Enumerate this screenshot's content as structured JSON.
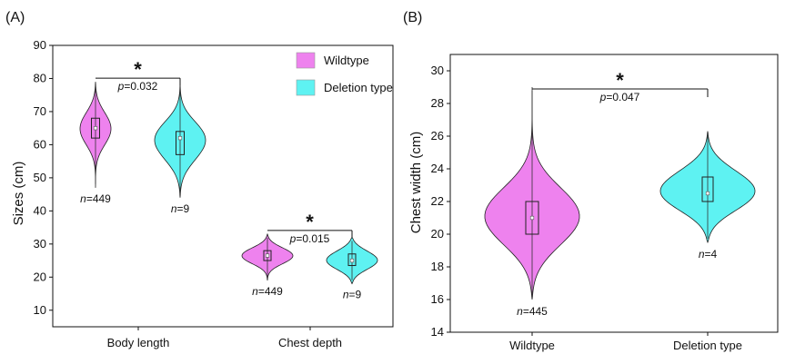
{
  "chart_data": [
    {
      "type": "violin",
      "panel_label": "(A)",
      "ylabel": "Sizes (cm)",
      "xlabel": "",
      "ylim": [
        5,
        90
      ],
      "yticks": [
        10,
        20,
        30,
        40,
        50,
        60,
        70,
        80,
        90
      ],
      "categories": [
        "Body length",
        "Chest depth"
      ],
      "legend": {
        "position": "top-right",
        "entries": [
          "Wildtype",
          "Deletion type"
        ]
      },
      "series": [
        {
          "name": "Wildtype",
          "color": "#ee82ee",
          "groups": [
            {
              "category": "Body length",
              "min": 47,
              "q1": 62,
              "median": 65,
              "mean": 65,
              "q3": 68,
              "max": 79,
              "n_label": "n=449"
            },
            {
              "category": "Chest depth",
              "min": 19,
              "q1": 25,
              "median": 26.5,
              "mean": 26.5,
              "q3": 28,
              "max": 33,
              "n_label": "n=449"
            }
          ]
        },
        {
          "name": "Deletion type",
          "color": "#5ef2f2",
          "groups": [
            {
              "category": "Body length",
              "min": 44,
              "q1": 57,
              "median": 62,
              "mean": 62,
              "q3": 64,
              "max": 79,
              "n_label": "n=9"
            },
            {
              "category": "Chest depth",
              "min": 18,
              "q1": 23.5,
              "median": 25,
              "mean": 25,
              "q3": 27,
              "max": 32,
              "n_label": "n=9"
            }
          ]
        }
      ],
      "annotations": [
        {
          "between": "Body length",
          "star": "*",
          "p_prefix": "p",
          "p_value": "=0.032"
        },
        {
          "between": "Chest depth",
          "star": "*",
          "p_prefix": "p",
          "p_value": "=0.015"
        }
      ]
    },
    {
      "type": "violin",
      "panel_label": "(B)",
      "ylabel": "Chest width (cm)",
      "xlabel": "",
      "ylim": [
        14,
        31
      ],
      "yticks": [
        14,
        16,
        18,
        20,
        22,
        24,
        26,
        28,
        30
      ],
      "categories": [
        "Wildtype",
        "Deletion type"
      ],
      "groups": [
        {
          "category": "Wildtype",
          "color": "#ee82ee",
          "min": 16,
          "q1": 20,
          "median": 21,
          "mean": 21,
          "q3": 22,
          "max": 29,
          "n_label": "n=445"
        },
        {
          "category": "Deletion type",
          "color": "#5ef2f2",
          "min": 19.5,
          "q1": 22,
          "median": 22.5,
          "mean": 22.5,
          "q3": 23.5,
          "max": 26.3,
          "n_label": "n=4"
        }
      ],
      "annotations": [
        {
          "between": "Wildtype-Deletion type",
          "star": "*",
          "p_prefix": "p",
          "p_value": "=0.047"
        }
      ]
    }
  ]
}
